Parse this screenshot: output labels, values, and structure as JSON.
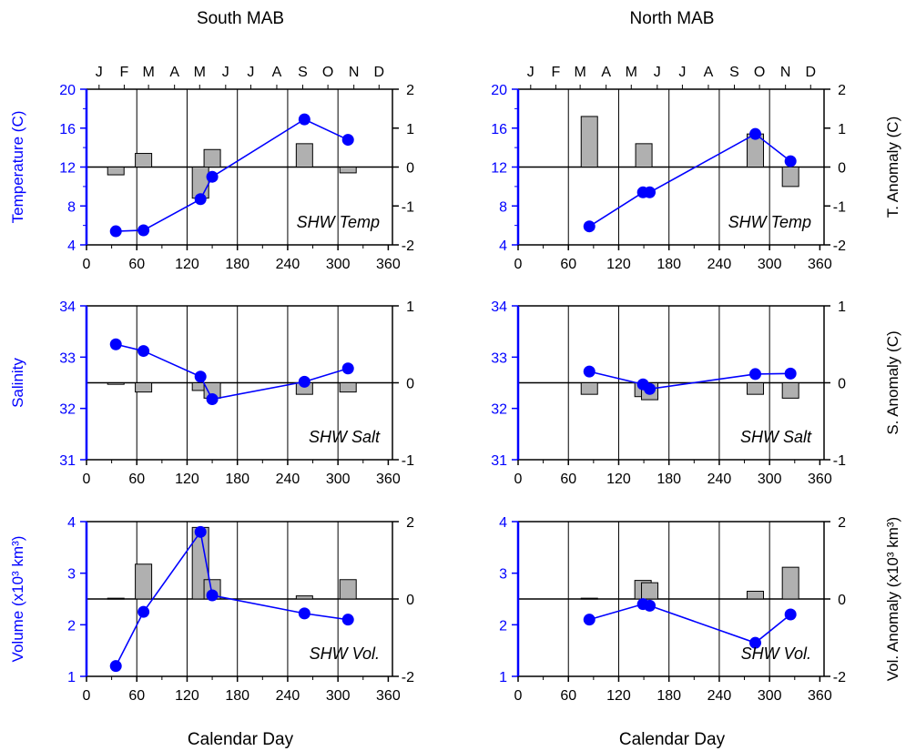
{
  "figure": {
    "col_titles": [
      "South MAB",
      "North MAB"
    ],
    "xlabel": "Calendar Day",
    "xticks": [
      0,
      60,
      120,
      180,
      240,
      300,
      360
    ],
    "month_labels": [
      "J",
      "F",
      "M",
      "A",
      "M",
      "J",
      "J",
      "A",
      "S",
      "O",
      "N",
      "D"
    ],
    "colors": {
      "series": "#0000ff",
      "bar_fill": "#b0b0b0",
      "axis": "#000000"
    }
  },
  "chart_data": [
    {
      "type": "line+bar",
      "column": "South MAB",
      "row": "temperature",
      "annotation": "SHW Temp",
      "ylabel_left": "Temperature (C)",
      "ylim_left": [
        4,
        20
      ],
      "yticks_left": [
        4,
        8,
        12,
        16,
        20
      ],
      "ylabel_right": "",
      "ylim_right": [
        -2,
        2
      ],
      "yticks_right": [
        -2,
        -1,
        0,
        1,
        2
      ],
      "xlim": [
        0,
        365
      ],
      "line": {
        "x": [
          35,
          68,
          136,
          150,
          260,
          312
        ],
        "y": [
          5.4,
          5.5,
          8.7,
          11.0,
          16.9,
          14.8
        ]
      },
      "bars": [
        {
          "x": 35,
          "value": -0.2
        },
        {
          "x": 68,
          "value": 0.35
        },
        {
          "x": 136,
          "value": -0.8
        },
        {
          "x": 150,
          "value": 0.45
        },
        {
          "x": 260,
          "value": 0.6
        },
        {
          "x": 312,
          "value": -0.15
        }
      ]
    },
    {
      "type": "line+bar",
      "column": "North MAB",
      "row": "temperature",
      "annotation": "SHW Temp",
      "ylabel_left": "",
      "ylim_left": [
        4,
        20
      ],
      "yticks_left": [
        4,
        8,
        12,
        16,
        20
      ],
      "ylabel_right": "T. Anomaly (C)",
      "ylim_right": [
        -2,
        2
      ],
      "yticks_right": [
        -2,
        -1,
        0,
        1,
        2
      ],
      "xlim": [
        0,
        365
      ],
      "line": {
        "x": [
          85,
          149,
          157,
          283,
          325
        ],
        "y": [
          5.9,
          9.4,
          9.4,
          15.4,
          12.6
        ]
      },
      "bars": [
        {
          "x": 85,
          "value": 1.3
        },
        {
          "x": 150,
          "value": 0.6
        },
        {
          "x": 283,
          "value": 0.85
        },
        {
          "x": 325,
          "value": -0.5
        }
      ]
    },
    {
      "type": "line+bar",
      "column": "South MAB",
      "row": "salinity",
      "annotation": "SHW Salt",
      "ylabel_left": "Salinity",
      "ylim_left": [
        31,
        34
      ],
      "yticks_left": [
        31,
        32,
        33,
        34
      ],
      "ylabel_right": "",
      "ylim_right": [
        -1,
        1
      ],
      "yticks_right": [
        -1,
        0,
        1
      ],
      "xlim": [
        0,
        365
      ],
      "line": {
        "x": [
          35,
          68,
          136,
          150,
          260,
          312
        ],
        "y": [
          33.25,
          33.12,
          32.62,
          32.18,
          32.52,
          32.78
        ]
      },
      "bars": [
        {
          "x": 35,
          "value": -0.02
        },
        {
          "x": 68,
          "value": -0.12
        },
        {
          "x": 136,
          "value": -0.1
        },
        {
          "x": 150,
          "value": -0.2
        },
        {
          "x": 260,
          "value": -0.15
        },
        {
          "x": 312,
          "value": -0.12
        }
      ]
    },
    {
      "type": "line+bar",
      "column": "North MAB",
      "row": "salinity",
      "annotation": "SHW Salt",
      "ylabel_left": "",
      "ylim_left": [
        31,
        34
      ],
      "yticks_left": [
        31,
        32,
        33,
        34
      ],
      "ylabel_right": "S. Anomaly (C)",
      "ylim_right": [
        -1,
        1
      ],
      "yticks_right": [
        -1,
        0,
        1
      ],
      "xlim": [
        0,
        365
      ],
      "line": {
        "x": [
          85,
          149,
          157,
          283,
          325
        ],
        "y": [
          32.72,
          32.47,
          32.38,
          32.67,
          32.68
        ]
      },
      "bars": [
        {
          "x": 85,
          "value": -0.15
        },
        {
          "x": 149,
          "value": -0.18
        },
        {
          "x": 157,
          "value": -0.22
        },
        {
          "x": 283,
          "value": -0.15
        },
        {
          "x": 325,
          "value": -0.2
        }
      ]
    },
    {
      "type": "line+bar",
      "column": "South MAB",
      "row": "volume",
      "annotation": "SHW Vol.",
      "ylabel_left": "Volume (x10³ km³)",
      "ylim_left": [
        1,
        4
      ],
      "yticks_left": [
        1,
        2,
        3,
        4
      ],
      "ylabel_right": "",
      "ylim_right": [
        -2,
        2
      ],
      "yticks_right": [
        -2,
        0,
        2
      ],
      "xlim": [
        0,
        365
      ],
      "line": {
        "x": [
          35,
          68,
          136,
          150,
          260,
          312
        ],
        "y": [
          1.2,
          2.25,
          3.8,
          2.57,
          2.22,
          2.1
        ]
      },
      "bars": [
        {
          "x": 35,
          "value": 0.02
        },
        {
          "x": 68,
          "value": 0.9
        },
        {
          "x": 136,
          "value": 1.85
        },
        {
          "x": 150,
          "value": 0.5
        },
        {
          "x": 260,
          "value": 0.08
        },
        {
          "x": 312,
          "value": 0.5
        }
      ]
    },
    {
      "type": "line+bar",
      "column": "North MAB",
      "row": "volume",
      "annotation": "SHW Vol.",
      "ylabel_left": "",
      "ylim_left": [
        1,
        4
      ],
      "yticks_left": [
        1,
        2,
        3,
        4
      ],
      "ylabel_right": "Vol. Anomaly (x10³ km³)",
      "ylim_right": [
        -2,
        2
      ],
      "yticks_right": [
        -2,
        0,
        2
      ],
      "xlim": [
        0,
        365
      ],
      "line": {
        "x": [
          85,
          149,
          157,
          283,
          325
        ],
        "y": [
          2.1,
          2.4,
          2.37,
          1.65,
          2.2
        ]
      },
      "bars": [
        {
          "x": 85,
          "value": 0.02
        },
        {
          "x": 149,
          "value": 0.48
        },
        {
          "x": 157,
          "value": 0.42
        },
        {
          "x": 283,
          "value": 0.2
        },
        {
          "x": 325,
          "value": 0.82
        }
      ]
    }
  ]
}
